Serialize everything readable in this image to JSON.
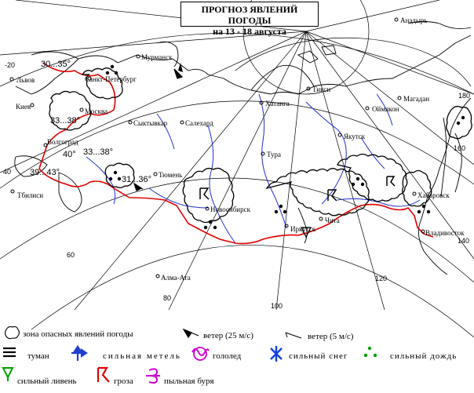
{
  "title": {
    "line1": "ПРОГНОЗ ЯВЛЕНИЙ ПОГОДЫ",
    "line2": "на 13 - 18 августа"
  },
  "colors": {
    "border": "#e00000",
    "rivers": "#1f2fcf",
    "coast": "#000000",
    "grid": "#000000",
    "thunder": "#e00000",
    "snowstorm": "#1f3fd0",
    "ice": "#d000d0",
    "snow": "#1040e0",
    "rain": "#00a000",
    "shower": "#00a000",
    "dust": "#d000d0"
  },
  "grid_labels": {
    "lon_minus20": "-20",
    "lon_40": "40",
    "lon_60": "60",
    "lon_80": "80",
    "lon_100": "100",
    "lon_120": "120",
    "lon_140": "140",
    "lon_160": "160",
    "lon_180": "180"
  },
  "cities": [
    {
      "name": "Мурманск",
      "icon": "city-dot"
    },
    {
      "name": "Санкт-Петербург",
      "icon": "city-dot"
    },
    {
      "name": "Львов",
      "icon": "city-dot"
    },
    {
      "name": "Киев",
      "icon": "city-dot"
    },
    {
      "name": "Москва",
      "icon": "city-dot"
    },
    {
      "name": "Сыктывкар",
      "icon": "city-dot"
    },
    {
      "name": "Салехард",
      "icon": "city-dot"
    },
    {
      "name": "Волгоград",
      "icon": "city-dot"
    },
    {
      "name": "Тбилиси",
      "icon": "city-dot"
    },
    {
      "name": "Тюмень",
      "icon": "city-dot"
    },
    {
      "name": "Хатанга",
      "icon": "city-dot"
    },
    {
      "name": "Тикси",
      "icon": "city-dot"
    },
    {
      "name": "Анадырь",
      "icon": "city-dot"
    },
    {
      "name": "Оймякон",
      "icon": "city-dot"
    },
    {
      "name": "Магадан",
      "icon": "city-dot"
    },
    {
      "name": "Якутск",
      "icon": "city-dot"
    },
    {
      "name": "Тура",
      "icon": "city-dot"
    },
    {
      "name": "Новосибирск",
      "icon": "city-dot"
    },
    {
      "name": "Иркутск",
      "icon": "city-dot"
    },
    {
      "name": "Чита",
      "icon": "city-dot"
    },
    {
      "name": "Хабаровск",
      "icon": "city-dot"
    },
    {
      "name": "Владивосток",
      "icon": "city-dot"
    },
    {
      "name": "Алма-Ата",
      "icon": "city-dot"
    }
  ],
  "temperatures": {
    "t1": "30...35°",
    "t2": "33...38°",
    "t3": "40°",
    "t4": "33...38°",
    "t5": "39...43°",
    "t6": "31...36°"
  },
  "legend": {
    "hazard_zone": "зона опасных явлений погоды",
    "wind_strong": "ветер (25 м/с)",
    "wind_weak": "ветер (5 м/с)",
    "fog": "туман",
    "snowstorm": "сильная метель",
    "ice": "гололед",
    "snow": "сильный снег",
    "rain": "сильный дождь",
    "shower": "сильный ливень",
    "thunder": "гроза",
    "dust": "пыльная буря"
  }
}
